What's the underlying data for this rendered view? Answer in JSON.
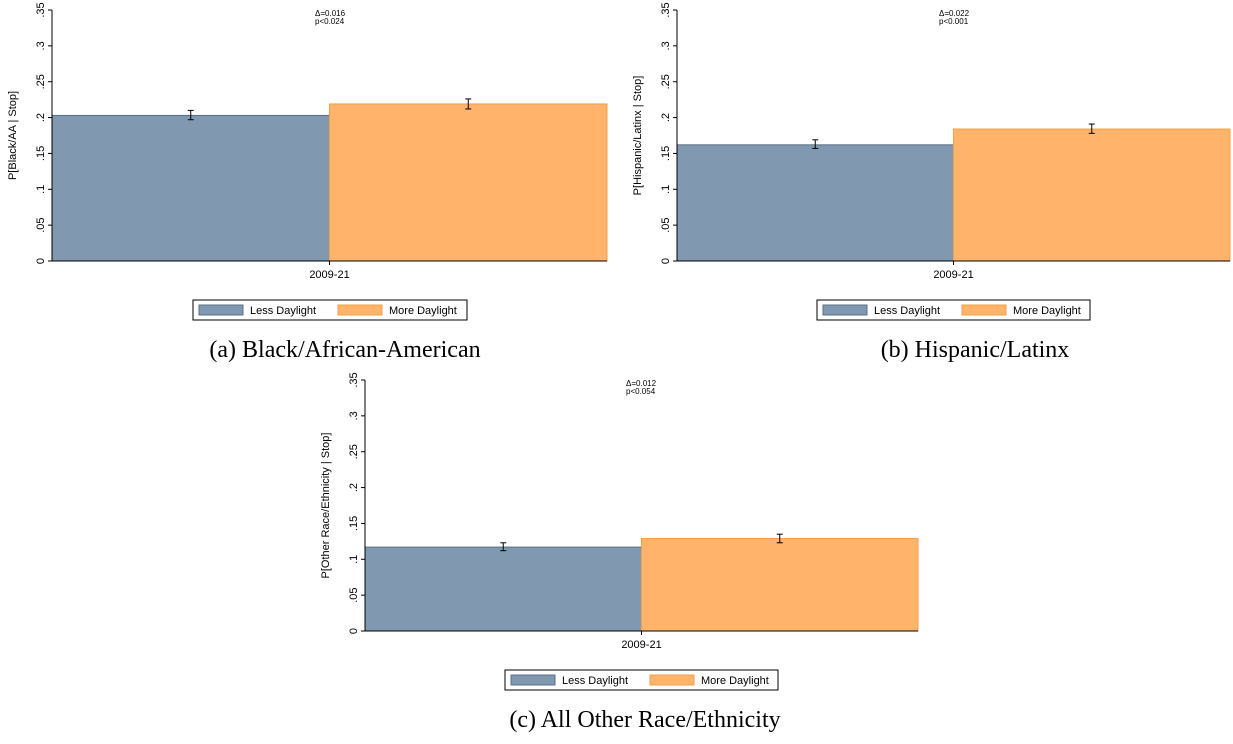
{
  "chart_data": [
    {
      "type": "bar",
      "id": "a",
      "caption": "(a) Black/African-American",
      "ylabel": "P[Black/AA | Stop]",
      "xlabel": "",
      "categories": [
        "2009-21"
      ],
      "ylim": [
        0,
        0.35
      ],
      "yticks": [
        0,
        0.05,
        0.1,
        0.15,
        0.2,
        0.25,
        0.3,
        0.35
      ],
      "ytick_labels": [
        "0",
        ".05",
        ".1",
        ".15",
        ".2",
        ".25",
        ".3",
        ".35"
      ],
      "series": [
        {
          "name": "Less Daylight",
          "values": [
            0.203
          ],
          "ci": [
            [
              0.197,
              0.21
            ]
          ]
        },
        {
          "name": "More Daylight",
          "values": [
            0.219
          ],
          "ci": [
            [
              0.212,
              0.226
            ]
          ]
        }
      ],
      "annotation": [
        "Δ=0.016",
        "p<0.024"
      ],
      "legend": {
        "position": "bottom-center"
      },
      "grid": false
    },
    {
      "type": "bar",
      "id": "b",
      "caption": "(b) Hispanic/Latinx",
      "ylabel": "P[Hispanic/Latinx | Stop]",
      "xlabel": "",
      "categories": [
        "2009-21"
      ],
      "ylim": [
        0,
        0.35
      ],
      "yticks": [
        0,
        0.05,
        0.1,
        0.15,
        0.2,
        0.25,
        0.3,
        0.35
      ],
      "ytick_labels": [
        "0",
        ".05",
        ".1",
        ".15",
        ".2",
        ".25",
        ".3",
        ".35"
      ],
      "series": [
        {
          "name": "Less Daylight",
          "values": [
            0.162
          ],
          "ci": [
            [
              0.157,
              0.169
            ]
          ]
        },
        {
          "name": "More Daylight",
          "values": [
            0.184
          ],
          "ci": [
            [
              0.178,
              0.191
            ]
          ]
        }
      ],
      "annotation": [
        "Δ=0.022",
        "p<0.001"
      ],
      "legend": {
        "position": "bottom-center"
      },
      "grid": false
    },
    {
      "type": "bar",
      "id": "c",
      "caption": "(c) All Other Race/Ethnicity",
      "ylabel": "P[Other Race/Ethnicity | Stop]",
      "xlabel": "",
      "categories": [
        "2009-21"
      ],
      "ylim": [
        0,
        0.35
      ],
      "yticks": [
        0,
        0.05,
        0.1,
        0.15,
        0.2,
        0.25,
        0.3,
        0.35
      ],
      "ytick_labels": [
        "0",
        ".05",
        ".1",
        ".15",
        ".2",
        ".25",
        ".3",
        ".35"
      ],
      "series": [
        {
          "name": "Less Daylight",
          "values": [
            0.117
          ],
          "ci": [
            [
              0.112,
              0.123
            ]
          ]
        },
        {
          "name": "More Daylight",
          "values": [
            0.129
          ],
          "ci": [
            [
              0.123,
              0.135
            ]
          ]
        }
      ],
      "annotation": [
        "Δ=0.012",
        "p<0.054"
      ],
      "legend": {
        "position": "bottom-center"
      },
      "grid": false
    }
  ],
  "colors": {
    "less_daylight": "#8099b0",
    "less_daylight_edge": "#5a6f83",
    "more_daylight": "#ffb36b",
    "more_daylight_edge": "#f0a04a"
  }
}
